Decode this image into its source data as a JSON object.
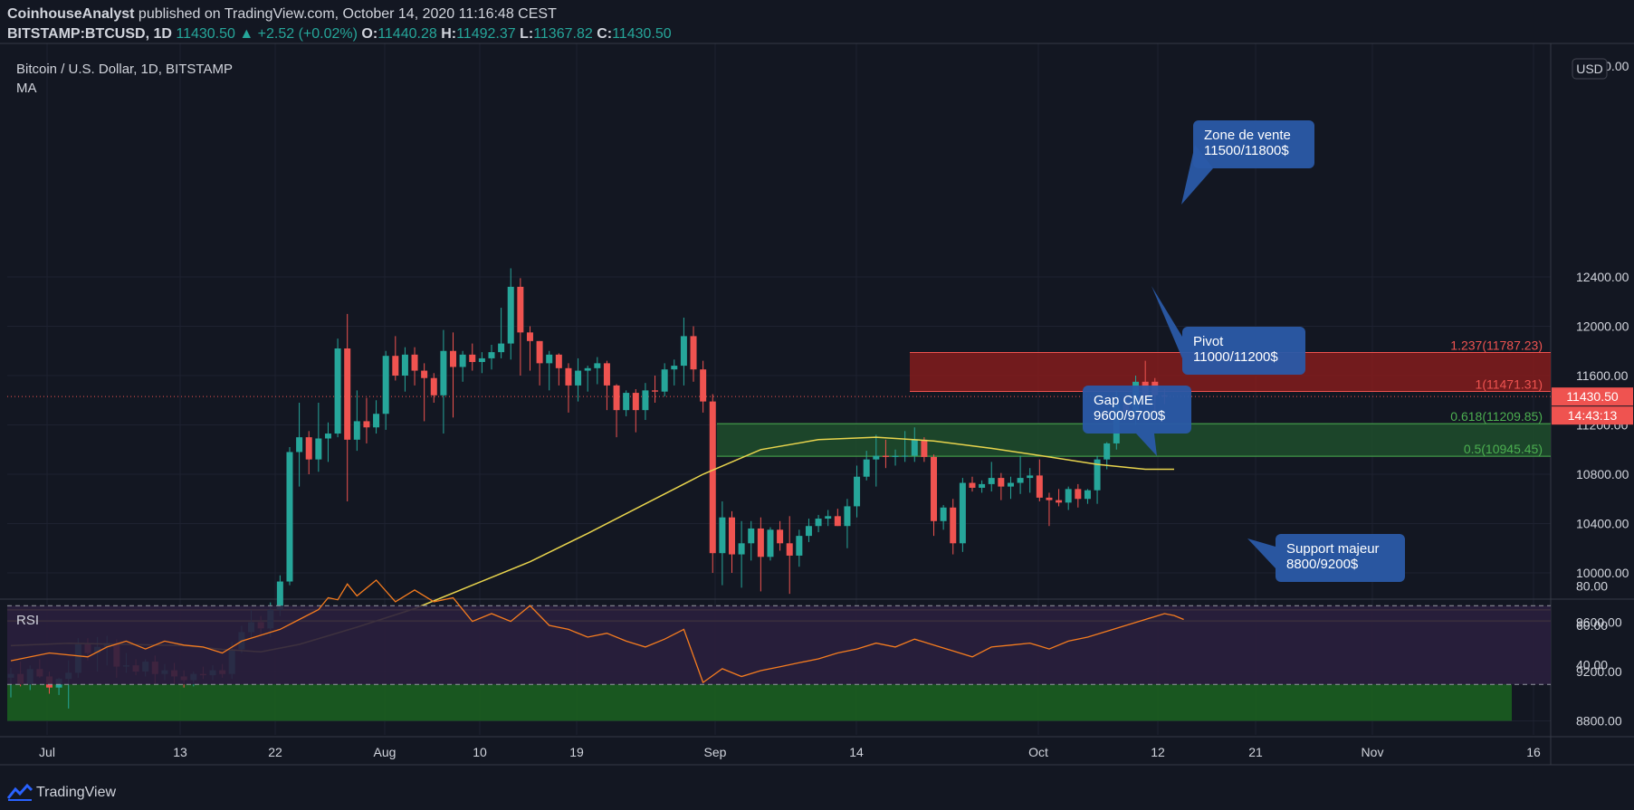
{
  "header": {
    "author": "CoinhouseAnalyst",
    "published": "published on TradingView.com, October 14, 2020 11:16:48 CEST",
    "symbol": "BITSTAMP:BTCUSD, 1D",
    "last": "11430.50",
    "change": "▲ +2.52 (+0.02%)",
    "o_label": "O:",
    "o": "11440.28",
    "h_label": "H:",
    "h": "11492.37",
    "l_label": "L:",
    "l": "11367.82",
    "c_label": "C:",
    "c": "11430.50"
  },
  "footer": {
    "brand": "TradingView",
    "logo_icon": "tradingview-logo-icon"
  },
  "colors": {
    "background": "#131722",
    "up": "#26a69a",
    "down": "#ef5350",
    "ma": "#e8d44d",
    "rsi": "#f57c1f",
    "grid": "#1e2230",
    "text": "#d1d4dc"
  },
  "chart_data": {
    "type": "candlestick",
    "title": "Bitcoin / U.S. Dollar, 1D, BITSTAMP",
    "indicator": "MA",
    "currency": "USD",
    "ylim": [
      8600,
      12800
    ],
    "y_ticks": [
      "12400.00",
      "12000.00",
      "11600.00",
      "11200.00",
      "10800.00",
      "10400.00",
      "10000.00",
      "9600.00",
      "9200.00",
      "8800.00"
    ],
    "x_ticks": [
      "Jul",
      "13",
      "22",
      "Aug",
      "10",
      "19",
      "Sep",
      "14",
      "Oct",
      "12",
      "21",
      "Nov",
      "16"
    ],
    "start_date": "2020-06-29",
    "candles": [
      {
        "o": 9150,
        "h": 9230,
        "l": 8990,
        "c": 9180
      },
      {
        "o": 9180,
        "h": 9280,
        "l": 9080,
        "c": 9100
      },
      {
        "o": 9100,
        "h": 9250,
        "l": 9050,
        "c": 9220
      },
      {
        "o": 9220,
        "h": 9300,
        "l": 9150,
        "c": 9160
      },
      {
        "o": 9160,
        "h": 9200,
        "l": 9020,
        "c": 9070
      },
      {
        "o": 9070,
        "h": 9150,
        "l": 9010,
        "c": 9140
      },
      {
        "o": 9140,
        "h": 9290,
        "l": 8900,
        "c": 9190
      },
      {
        "o": 9190,
        "h": 9470,
        "l": 9150,
        "c": 9420
      },
      {
        "o": 9420,
        "h": 9470,
        "l": 9290,
        "c": 9350
      },
      {
        "o": 9350,
        "h": 9480,
        "l": 9200,
        "c": 9400
      },
      {
        "o": 9400,
        "h": 9490,
        "l": 9250,
        "c": 9430
      },
      {
        "o": 9430,
        "h": 9460,
        "l": 9150,
        "c": 9240
      },
      {
        "o": 9240,
        "h": 9350,
        "l": 9190,
        "c": 9250
      },
      {
        "o": 9250,
        "h": 9300,
        "l": 9170,
        "c": 9200
      },
      {
        "o": 9200,
        "h": 9300,
        "l": 9160,
        "c": 9280
      },
      {
        "o": 9280,
        "h": 9330,
        "l": 9100,
        "c": 9180
      },
      {
        "o": 9180,
        "h": 9260,
        "l": 9130,
        "c": 9210
      },
      {
        "o": 9210,
        "h": 9270,
        "l": 9100,
        "c": 9160
      },
      {
        "o": 9160,
        "h": 9210,
        "l": 9070,
        "c": 9130
      },
      {
        "o": 9130,
        "h": 9200,
        "l": 9080,
        "c": 9180
      },
      {
        "o": 9180,
        "h": 9240,
        "l": 9140,
        "c": 9170
      },
      {
        "o": 9170,
        "h": 9250,
        "l": 9130,
        "c": 9210
      },
      {
        "o": 9210,
        "h": 9260,
        "l": 9150,
        "c": 9180
      },
      {
        "o": 9180,
        "h": 9440,
        "l": 9140,
        "c": 9380
      },
      {
        "o": 9380,
        "h": 9570,
        "l": 9350,
        "c": 9520
      },
      {
        "o": 9520,
        "h": 9700,
        "l": 9480,
        "c": 9600
      },
      {
        "o": 9600,
        "h": 9650,
        "l": 9500,
        "c": 9550
      },
      {
        "o": 9550,
        "h": 9760,
        "l": 9480,
        "c": 9700
      },
      {
        "o": 9700,
        "h": 9980,
        "l": 9650,
        "c": 9930
      },
      {
        "o": 9930,
        "h": 11020,
        "l": 9900,
        "c": 10980
      },
      {
        "o": 10980,
        "h": 11380,
        "l": 10700,
        "c": 11100
      },
      {
        "o": 11100,
        "h": 11150,
        "l": 10800,
        "c": 10920
      },
      {
        "o": 10920,
        "h": 11380,
        "l": 10820,
        "c": 11090
      },
      {
        "o": 11090,
        "h": 11220,
        "l": 10900,
        "c": 11130
      },
      {
        "o": 11130,
        "h": 11900,
        "l": 11100,
        "c": 11820
      },
      {
        "o": 11820,
        "h": 12100,
        "l": 10580,
        "c": 11080
      },
      {
        "o": 11080,
        "h": 11480,
        "l": 10990,
        "c": 11230
      },
      {
        "o": 11230,
        "h": 11420,
        "l": 11050,
        "c": 11180
      },
      {
        "o": 11180,
        "h": 11400,
        "l": 11130,
        "c": 11290
      },
      {
        "o": 11290,
        "h": 11800,
        "l": 11160,
        "c": 11760
      },
      {
        "o": 11760,
        "h": 11920,
        "l": 11560,
        "c": 11600
      },
      {
        "o": 11600,
        "h": 11830,
        "l": 11470,
        "c": 11770
      },
      {
        "o": 11770,
        "h": 11830,
        "l": 11520,
        "c": 11640
      },
      {
        "o": 11640,
        "h": 11700,
        "l": 11230,
        "c": 11580
      },
      {
        "o": 11580,
        "h": 11620,
        "l": 11380,
        "c": 11440
      },
      {
        "o": 11440,
        "h": 11970,
        "l": 11130,
        "c": 11800
      },
      {
        "o": 11800,
        "h": 11950,
        "l": 11260,
        "c": 11670
      },
      {
        "o": 11670,
        "h": 11800,
        "l": 11550,
        "c": 11770
      },
      {
        "o": 11770,
        "h": 11860,
        "l": 11640,
        "c": 11710
      },
      {
        "o": 11710,
        "h": 11790,
        "l": 11620,
        "c": 11740
      },
      {
        "o": 11740,
        "h": 11850,
        "l": 11650,
        "c": 11790
      },
      {
        "o": 11790,
        "h": 12150,
        "l": 11740,
        "c": 11860
      },
      {
        "o": 11860,
        "h": 12470,
        "l": 11730,
        "c": 12320
      },
      {
        "o": 12320,
        "h": 12390,
        "l": 11600,
        "c": 11950
      },
      {
        "o": 11950,
        "h": 12000,
        "l": 11640,
        "c": 11880
      },
      {
        "o": 11880,
        "h": 11880,
        "l": 11520,
        "c": 11700
      },
      {
        "o": 11700,
        "h": 11800,
        "l": 11480,
        "c": 11770
      },
      {
        "o": 11770,
        "h": 11780,
        "l": 11520,
        "c": 11660
      },
      {
        "o": 11660,
        "h": 11700,
        "l": 11300,
        "c": 11520
      },
      {
        "o": 11520,
        "h": 11740,
        "l": 11390,
        "c": 11640
      },
      {
        "o": 11640,
        "h": 11680,
        "l": 11470,
        "c": 11660
      },
      {
        "o": 11660,
        "h": 11750,
        "l": 11530,
        "c": 11700
      },
      {
        "o": 11700,
        "h": 11720,
        "l": 11320,
        "c": 11520
      },
      {
        "o": 11520,
        "h": 11530,
        "l": 11100,
        "c": 11320
      },
      {
        "o": 11320,
        "h": 11480,
        "l": 11270,
        "c": 11460
      },
      {
        "o": 11460,
        "h": 11490,
        "l": 11140,
        "c": 11320
      },
      {
        "o": 11320,
        "h": 11540,
        "l": 11240,
        "c": 11480
      },
      {
        "o": 11480,
        "h": 11600,
        "l": 11380,
        "c": 11470
      },
      {
        "o": 11470,
        "h": 11700,
        "l": 11430,
        "c": 11650
      },
      {
        "o": 11650,
        "h": 11730,
        "l": 11520,
        "c": 11680
      },
      {
        "o": 11680,
        "h": 12070,
        "l": 11520,
        "c": 11920
      },
      {
        "o": 11920,
        "h": 12000,
        "l": 11550,
        "c": 11650
      },
      {
        "o": 11650,
        "h": 11720,
        "l": 11300,
        "c": 11390
      },
      {
        "o": 11390,
        "h": 11450,
        "l": 10000,
        "c": 10160
      },
      {
        "o": 10160,
        "h": 10580,
        "l": 9900,
        "c": 10450
      },
      {
        "o": 10450,
        "h": 10500,
        "l": 10000,
        "c": 10150
      },
      {
        "o": 10150,
        "h": 10420,
        "l": 9880,
        "c": 10240
      },
      {
        "o": 10240,
        "h": 10420,
        "l": 10100,
        "c": 10360
      },
      {
        "o": 10360,
        "h": 10450,
        "l": 9850,
        "c": 10130
      },
      {
        "o": 10130,
        "h": 10370,
        "l": 10100,
        "c": 10350
      },
      {
        "o": 10350,
        "h": 10420,
        "l": 10180,
        "c": 10240
      },
      {
        "o": 10240,
        "h": 10460,
        "l": 9830,
        "c": 10140
      },
      {
        "o": 10140,
        "h": 10350,
        "l": 10050,
        "c": 10300
      },
      {
        "o": 10300,
        "h": 10440,
        "l": 10250,
        "c": 10380
      },
      {
        "o": 10380,
        "h": 10470,
        "l": 10330,
        "c": 10440
      },
      {
        "o": 10440,
        "h": 10510,
        "l": 10380,
        "c": 10460
      },
      {
        "o": 10460,
        "h": 10520,
        "l": 10380,
        "c": 10380
      },
      {
        "o": 10380,
        "h": 10600,
        "l": 10200,
        "c": 10540
      },
      {
        "o": 10540,
        "h": 10870,
        "l": 10450,
        "c": 10780
      },
      {
        "o": 10780,
        "h": 10990,
        "l": 10750,
        "c": 10920
      },
      {
        "o": 10920,
        "h": 11120,
        "l": 10700,
        "c": 10950
      },
      {
        "o": 10950,
        "h": 11080,
        "l": 10850,
        "c": 10940
      },
      {
        "o": 10940,
        "h": 11000,
        "l": 10870,
        "c": 10950
      },
      {
        "o": 10950,
        "h": 11150,
        "l": 10900,
        "c": 10950
      },
      {
        "o": 10950,
        "h": 11180,
        "l": 10900,
        "c": 11080
      },
      {
        "o": 11080,
        "h": 11100,
        "l": 10900,
        "c": 10940
      },
      {
        "o": 10940,
        "h": 10960,
        "l": 10300,
        "c": 10420
      },
      {
        "o": 10420,
        "h": 10550,
        "l": 10350,
        "c": 10530
      },
      {
        "o": 10530,
        "h": 10600,
        "l": 10150,
        "c": 10240
      },
      {
        "o": 10240,
        "h": 10770,
        "l": 10170,
        "c": 10730
      },
      {
        "o": 10730,
        "h": 10780,
        "l": 10660,
        "c": 10690
      },
      {
        "o": 10690,
        "h": 10750,
        "l": 10650,
        "c": 10720
      },
      {
        "o": 10720,
        "h": 10900,
        "l": 10660,
        "c": 10770
      },
      {
        "o": 10770,
        "h": 10810,
        "l": 10590,
        "c": 10700
      },
      {
        "o": 10700,
        "h": 10780,
        "l": 10600,
        "c": 10730
      },
      {
        "o": 10730,
        "h": 10950,
        "l": 10640,
        "c": 10770
      },
      {
        "o": 10770,
        "h": 10850,
        "l": 10650,
        "c": 10790
      },
      {
        "o": 10790,
        "h": 10920,
        "l": 10580,
        "c": 10610
      },
      {
        "o": 10610,
        "h": 10650,
        "l": 10380,
        "c": 10590
      },
      {
        "o": 10590,
        "h": 10680,
        "l": 10540,
        "c": 10570
      },
      {
        "o": 10570,
        "h": 10700,
        "l": 10510,
        "c": 10680
      },
      {
        "o": 10680,
        "h": 10720,
        "l": 10530,
        "c": 10600
      },
      {
        "o": 10600,
        "h": 10680,
        "l": 10560,
        "c": 10670
      },
      {
        "o": 10670,
        "h": 10950,
        "l": 10560,
        "c": 10920
      },
      {
        "o": 10920,
        "h": 11060,
        "l": 10840,
        "c": 11050
      },
      {
        "o": 11050,
        "h": 11480,
        "l": 11000,
        "c": 11370
      },
      {
        "o": 11370,
        "h": 11450,
        "l": 11250,
        "c": 11300
      },
      {
        "o": 11300,
        "h": 11600,
        "l": 11200,
        "c": 11550
      },
      {
        "o": 11550,
        "h": 11720,
        "l": 11450,
        "c": 11420
      },
      {
        "o": 11550,
        "h": 11580,
        "l": 11300,
        "c": 11440
      },
      {
        "o": 11440,
        "h": 11490,
        "l": 11370,
        "c": 11430
      }
    ],
    "ma": [
      {
        "x": 0,
        "y": 9410
      },
      {
        "x": 6,
        "y": 9430
      },
      {
        "x": 12,
        "y": 9420
      },
      {
        "x": 18,
        "y": 9410
      },
      {
        "x": 22,
        "y": 9380
      },
      {
        "x": 26,
        "y": 9360
      },
      {
        "x": 30,
        "y": 9420
      },
      {
        "x": 36,
        "y": 9560
      },
      {
        "x": 42,
        "y": 9710
      },
      {
        "x": 48,
        "y": 9900
      },
      {
        "x": 54,
        "y": 10090
      },
      {
        "x": 60,
        "y": 10320
      },
      {
        "x": 66,
        "y": 10560
      },
      {
        "x": 72,
        "y": 10800
      },
      {
        "x": 78,
        "y": 11000
      },
      {
        "x": 84,
        "y": 11080
      },
      {
        "x": 90,
        "y": 11100
      },
      {
        "x": 96,
        "y": 11070
      },
      {
        "x": 102,
        "y": 11010
      },
      {
        "x": 108,
        "y": 10940
      },
      {
        "x": 113,
        "y": 10880
      },
      {
        "x": 118,
        "y": 10840
      },
      {
        "x": 121,
        "y": 10840
      }
    ],
    "rsi": {
      "label": "RSI",
      "ylim": [
        25,
        90
      ],
      "y_ticks": [
        "80.00",
        "60.00",
        "40.00"
      ],
      "upper_band": 70,
      "lower_band": 30,
      "values": [
        {
          "x": 0,
          "y": 42
        },
        {
          "x": 4,
          "y": 46
        },
        {
          "x": 8,
          "y": 44
        },
        {
          "x": 10,
          "y": 49
        },
        {
          "x": 12,
          "y": 52
        },
        {
          "x": 14,
          "y": 48
        },
        {
          "x": 16,
          "y": 52
        },
        {
          "x": 18,
          "y": 50
        },
        {
          "x": 20,
          "y": 49
        },
        {
          "x": 22,
          "y": 46
        },
        {
          "x": 24,
          "y": 52
        },
        {
          "x": 26,
          "y": 55
        },
        {
          "x": 28,
          "y": 58
        },
        {
          "x": 30,
          "y": 63
        },
        {
          "x": 32,
          "y": 68
        },
        {
          "x": 33,
          "y": 74
        },
        {
          "x": 34,
          "y": 73
        },
        {
          "x": 35,
          "y": 81
        },
        {
          "x": 36,
          "y": 75
        },
        {
          "x": 38,
          "y": 83
        },
        {
          "x": 40,
          "y": 72
        },
        {
          "x": 42,
          "y": 78
        },
        {
          "x": 44,
          "y": 72
        },
        {
          "x": 46,
          "y": 74
        },
        {
          "x": 48,
          "y": 62
        },
        {
          "x": 50,
          "y": 66
        },
        {
          "x": 52,
          "y": 62
        },
        {
          "x": 54,
          "y": 70
        },
        {
          "x": 56,
          "y": 60
        },
        {
          "x": 58,
          "y": 58
        },
        {
          "x": 60,
          "y": 54
        },
        {
          "x": 62,
          "y": 56
        },
        {
          "x": 64,
          "y": 52
        },
        {
          "x": 66,
          "y": 49
        },
        {
          "x": 68,
          "y": 53
        },
        {
          "x": 70,
          "y": 58
        },
        {
          "x": 72,
          "y": 31
        },
        {
          "x": 74,
          "y": 38
        },
        {
          "x": 76,
          "y": 34
        },
        {
          "x": 78,
          "y": 37
        },
        {
          "x": 80,
          "y": 39
        },
        {
          "x": 82,
          "y": 41
        },
        {
          "x": 84,
          "y": 43
        },
        {
          "x": 86,
          "y": 46
        },
        {
          "x": 88,
          "y": 48
        },
        {
          "x": 90,
          "y": 51
        },
        {
          "x": 92,
          "y": 49
        },
        {
          "x": 94,
          "y": 53
        },
        {
          "x": 96,
          "y": 50
        },
        {
          "x": 98,
          "y": 47
        },
        {
          "x": 100,
          "y": 44
        },
        {
          "x": 102,
          "y": 49
        },
        {
          "x": 104,
          "y": 50
        },
        {
          "x": 106,
          "y": 51
        },
        {
          "x": 108,
          "y": 48
        },
        {
          "x": 110,
          "y": 52
        },
        {
          "x": 112,
          "y": 54
        },
        {
          "x": 114,
          "y": 57
        },
        {
          "x": 116,
          "y": 60
        },
        {
          "x": 118,
          "y": 63
        },
        {
          "x": 120,
          "y": 66
        },
        {
          "x": 121,
          "y": 65
        },
        {
          "x": 122,
          "y": 63
        }
      ]
    },
    "zones": [
      {
        "kind": "sell",
        "from": 11471,
        "to": 11787,
        "color": "#8b1d1d"
      },
      {
        "kind": "pivot",
        "from": 10945,
        "to": 11210,
        "color": "#1e4d2b"
      },
      {
        "kind": "support",
        "from": 8800,
        "to": 9100,
        "color": "#1b5e20"
      }
    ],
    "fib_levels": [
      {
        "label": "1.237(11787.23)",
        "value": 11787.23,
        "color": "#ef5350"
      },
      {
        "label": "1(11471.31)",
        "value": 11471.31,
        "color": "#ef5350"
      },
      {
        "label": "0.618(11209.85)",
        "value": 11209.85,
        "color": "#4caf50"
      },
      {
        "label": "0.5(10945.45)",
        "value": 10945.45,
        "color": "#4caf50"
      }
    ],
    "hlines": [
      9700,
      9610
    ],
    "price_label": "11430.50",
    "countdown": "14:43:13",
    "annotations": [
      {
        "lines": [
          "Zone de vente",
          "11500/11800$"
        ]
      },
      {
        "lines": [
          "Pivot",
          "11000/11200$"
        ]
      },
      {
        "lines": [
          "Gap CME",
          "9600/9700$"
        ]
      },
      {
        "lines": [
          "Support majeur",
          "8800/9200$"
        ]
      }
    ]
  }
}
